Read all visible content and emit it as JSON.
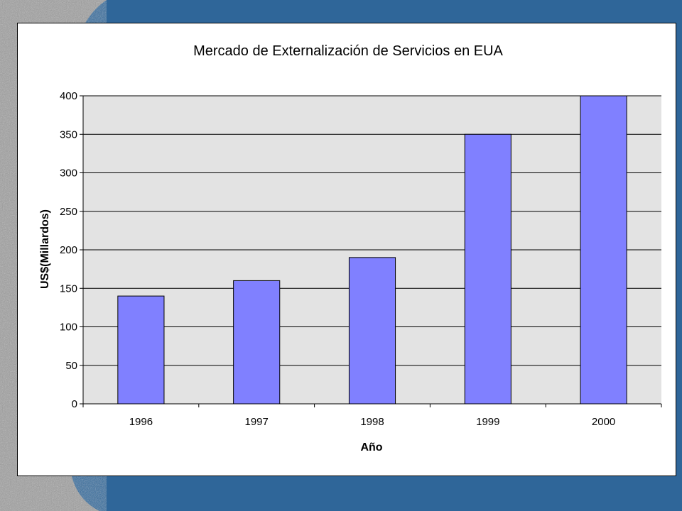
{
  "chart_data": {
    "type": "bar",
    "title": "Mercado de Externalización de Servicios en EUA",
    "xlabel": "Año",
    "ylabel": "US$(Millardos)",
    "categories": [
      "1996",
      "1997",
      "1998",
      "1999",
      "2000"
    ],
    "values": [
      140,
      160,
      190,
      350,
      400
    ],
    "ylim": [
      0,
      400
    ],
    "yticks": [
      "0",
      "50",
      "100",
      "150",
      "200",
      "250",
      "300",
      "350",
      "400"
    ],
    "grid": true,
    "legend": "none",
    "colors": {
      "bar": "#8080ff",
      "plot_background": "#e3e3e3",
      "slide_background": "#2f6699",
      "texture": "#9a9a9a"
    }
  }
}
